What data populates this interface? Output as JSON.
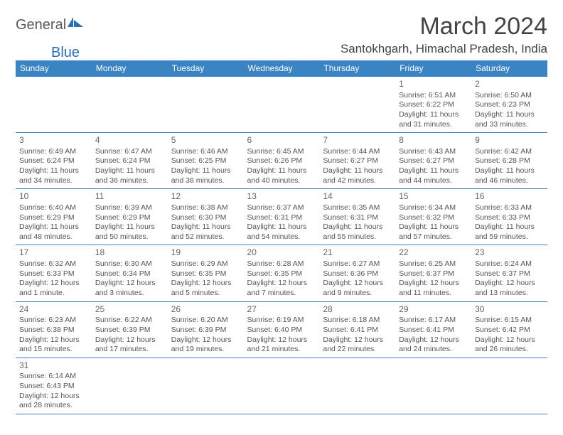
{
  "logo": {
    "part1": "General",
    "part2": "Blue"
  },
  "title": "March 2024",
  "location": "Santokhgarh, Himachal Pradesh, India",
  "colors": {
    "header_bg": "#3b84c4",
    "header_text": "#ffffff",
    "border": "#3b84c4",
    "body_text": "#555555",
    "title_text": "#444444",
    "logo_gray": "#5a5a5a",
    "logo_blue": "#2a6db8",
    "background": "#ffffff"
  },
  "day_headers": [
    "Sunday",
    "Monday",
    "Tuesday",
    "Wednesday",
    "Thursday",
    "Friday",
    "Saturday"
  ],
  "weeks": [
    [
      null,
      null,
      null,
      null,
      null,
      {
        "n": "1",
        "sunrise": "Sunrise: 6:51 AM",
        "sunset": "Sunset: 6:22 PM",
        "day": "Daylight: 11 hours and 31 minutes."
      },
      {
        "n": "2",
        "sunrise": "Sunrise: 6:50 AM",
        "sunset": "Sunset: 6:23 PM",
        "day": "Daylight: 11 hours and 33 minutes."
      }
    ],
    [
      {
        "n": "3",
        "sunrise": "Sunrise: 6:49 AM",
        "sunset": "Sunset: 6:24 PM",
        "day": "Daylight: 11 hours and 34 minutes."
      },
      {
        "n": "4",
        "sunrise": "Sunrise: 6:47 AM",
        "sunset": "Sunset: 6:24 PM",
        "day": "Daylight: 11 hours and 36 minutes."
      },
      {
        "n": "5",
        "sunrise": "Sunrise: 6:46 AM",
        "sunset": "Sunset: 6:25 PM",
        "day": "Daylight: 11 hours and 38 minutes."
      },
      {
        "n": "6",
        "sunrise": "Sunrise: 6:45 AM",
        "sunset": "Sunset: 6:26 PM",
        "day": "Daylight: 11 hours and 40 minutes."
      },
      {
        "n": "7",
        "sunrise": "Sunrise: 6:44 AM",
        "sunset": "Sunset: 6:27 PM",
        "day": "Daylight: 11 hours and 42 minutes."
      },
      {
        "n": "8",
        "sunrise": "Sunrise: 6:43 AM",
        "sunset": "Sunset: 6:27 PM",
        "day": "Daylight: 11 hours and 44 minutes."
      },
      {
        "n": "9",
        "sunrise": "Sunrise: 6:42 AM",
        "sunset": "Sunset: 6:28 PM",
        "day": "Daylight: 11 hours and 46 minutes."
      }
    ],
    [
      {
        "n": "10",
        "sunrise": "Sunrise: 6:40 AM",
        "sunset": "Sunset: 6:29 PM",
        "day": "Daylight: 11 hours and 48 minutes."
      },
      {
        "n": "11",
        "sunrise": "Sunrise: 6:39 AM",
        "sunset": "Sunset: 6:29 PM",
        "day": "Daylight: 11 hours and 50 minutes."
      },
      {
        "n": "12",
        "sunrise": "Sunrise: 6:38 AM",
        "sunset": "Sunset: 6:30 PM",
        "day": "Daylight: 11 hours and 52 minutes."
      },
      {
        "n": "13",
        "sunrise": "Sunrise: 6:37 AM",
        "sunset": "Sunset: 6:31 PM",
        "day": "Daylight: 11 hours and 54 minutes."
      },
      {
        "n": "14",
        "sunrise": "Sunrise: 6:35 AM",
        "sunset": "Sunset: 6:31 PM",
        "day": "Daylight: 11 hours and 55 minutes."
      },
      {
        "n": "15",
        "sunrise": "Sunrise: 6:34 AM",
        "sunset": "Sunset: 6:32 PM",
        "day": "Daylight: 11 hours and 57 minutes."
      },
      {
        "n": "16",
        "sunrise": "Sunrise: 6:33 AM",
        "sunset": "Sunset: 6:33 PM",
        "day": "Daylight: 11 hours and 59 minutes."
      }
    ],
    [
      {
        "n": "17",
        "sunrise": "Sunrise: 6:32 AM",
        "sunset": "Sunset: 6:33 PM",
        "day": "Daylight: 12 hours and 1 minute."
      },
      {
        "n": "18",
        "sunrise": "Sunrise: 6:30 AM",
        "sunset": "Sunset: 6:34 PM",
        "day": "Daylight: 12 hours and 3 minutes."
      },
      {
        "n": "19",
        "sunrise": "Sunrise: 6:29 AM",
        "sunset": "Sunset: 6:35 PM",
        "day": "Daylight: 12 hours and 5 minutes."
      },
      {
        "n": "20",
        "sunrise": "Sunrise: 6:28 AM",
        "sunset": "Sunset: 6:35 PM",
        "day": "Daylight: 12 hours and 7 minutes."
      },
      {
        "n": "21",
        "sunrise": "Sunrise: 6:27 AM",
        "sunset": "Sunset: 6:36 PM",
        "day": "Daylight: 12 hours and 9 minutes."
      },
      {
        "n": "22",
        "sunrise": "Sunrise: 6:25 AM",
        "sunset": "Sunset: 6:37 PM",
        "day": "Daylight: 12 hours and 11 minutes."
      },
      {
        "n": "23",
        "sunrise": "Sunrise: 6:24 AM",
        "sunset": "Sunset: 6:37 PM",
        "day": "Daylight: 12 hours and 13 minutes."
      }
    ],
    [
      {
        "n": "24",
        "sunrise": "Sunrise: 6:23 AM",
        "sunset": "Sunset: 6:38 PM",
        "day": "Daylight: 12 hours and 15 minutes."
      },
      {
        "n": "25",
        "sunrise": "Sunrise: 6:22 AM",
        "sunset": "Sunset: 6:39 PM",
        "day": "Daylight: 12 hours and 17 minutes."
      },
      {
        "n": "26",
        "sunrise": "Sunrise: 6:20 AM",
        "sunset": "Sunset: 6:39 PM",
        "day": "Daylight: 12 hours and 19 minutes."
      },
      {
        "n": "27",
        "sunrise": "Sunrise: 6:19 AM",
        "sunset": "Sunset: 6:40 PM",
        "day": "Daylight: 12 hours and 21 minutes."
      },
      {
        "n": "28",
        "sunrise": "Sunrise: 6:18 AM",
        "sunset": "Sunset: 6:41 PM",
        "day": "Daylight: 12 hours and 22 minutes."
      },
      {
        "n": "29",
        "sunrise": "Sunrise: 6:17 AM",
        "sunset": "Sunset: 6:41 PM",
        "day": "Daylight: 12 hours and 24 minutes."
      },
      {
        "n": "30",
        "sunrise": "Sunrise: 6:15 AM",
        "sunset": "Sunset: 6:42 PM",
        "day": "Daylight: 12 hours and 26 minutes."
      }
    ],
    [
      {
        "n": "31",
        "sunrise": "Sunrise: 6:14 AM",
        "sunset": "Sunset: 6:43 PM",
        "day": "Daylight: 12 hours and 28 minutes."
      },
      null,
      null,
      null,
      null,
      null,
      null
    ]
  ]
}
